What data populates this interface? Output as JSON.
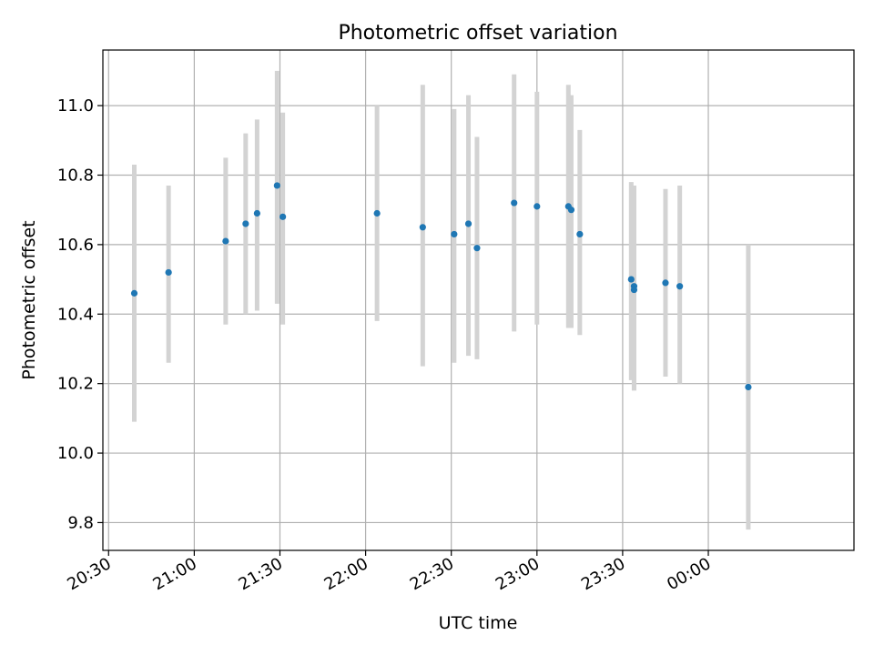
{
  "chart_data": {
    "type": "scatter",
    "title": "Photometric offset variation",
    "xlabel": "UTC time",
    "ylabel": "Photometric offset",
    "x_scale": "time",
    "xlim": [
      "20:28",
      "00:51"
    ],
    "ylim": [
      9.72,
      11.16
    ],
    "grid": true,
    "x_ticks": [
      {
        "label": "20:30",
        "t": "20:30"
      },
      {
        "label": "21:00",
        "t": "21:00"
      },
      {
        "label": "21:30",
        "t": "21:30"
      },
      {
        "label": "22:00",
        "t": "22:00"
      },
      {
        "label": "22:30",
        "t": "22:30"
      },
      {
        "label": "23:00",
        "t": "23:00"
      },
      {
        "label": "23:30",
        "t": "23:30"
      },
      {
        "label": "00:00",
        "t": "00:00"
      }
    ],
    "y_ticks": [
      {
        "label": "9.8",
        "v": 9.8
      },
      {
        "label": "10.0",
        "v": 10.0
      },
      {
        "label": "10.2",
        "v": 10.2
      },
      {
        "label": "10.4",
        "v": 10.4
      },
      {
        "label": "10.6",
        "v": 10.6
      },
      {
        "label": "10.8",
        "v": 10.8
      },
      {
        "label": "11.0",
        "v": 11.0
      }
    ],
    "colors": {
      "point": "#1f77b4",
      "errorbar": "#d3d3d3",
      "grid": "#b0b0b0",
      "axis": "#000000"
    },
    "points": [
      {
        "t": "20:39",
        "y": 10.46,
        "lo": 10.09,
        "hi": 10.83
      },
      {
        "t": "20:51",
        "y": 10.52,
        "lo": 10.26,
        "hi": 10.77
      },
      {
        "t": "21:11",
        "y": 10.61,
        "lo": 10.37,
        "hi": 10.85
      },
      {
        "t": "21:18",
        "y": 10.66,
        "lo": 10.4,
        "hi": 10.92
      },
      {
        "t": "21:22",
        "y": 10.69,
        "lo": 10.41,
        "hi": 10.96
      },
      {
        "t": "21:29",
        "y": 10.77,
        "lo": 10.43,
        "hi": 11.1
      },
      {
        "t": "21:31",
        "y": 10.68,
        "lo": 10.37,
        "hi": 10.98
      },
      {
        "t": "22:04",
        "y": 10.69,
        "lo": 10.38,
        "hi": 11.0
      },
      {
        "t": "22:20",
        "y": 10.65,
        "lo": 10.25,
        "hi": 11.06
      },
      {
        "t": "22:31",
        "y": 10.63,
        "lo": 10.26,
        "hi": 10.99
      },
      {
        "t": "22:36",
        "y": 10.66,
        "lo": 10.28,
        "hi": 11.03
      },
      {
        "t": "22:39",
        "y": 10.59,
        "lo": 10.27,
        "hi": 10.91
      },
      {
        "t": "22:52",
        "y": 10.72,
        "lo": 10.35,
        "hi": 11.09
      },
      {
        "t": "23:00",
        "y": 10.71,
        "lo": 10.37,
        "hi": 11.04
      },
      {
        "t": "23:11",
        "y": 10.71,
        "lo": 10.36,
        "hi": 11.06
      },
      {
        "t": "23:12",
        "y": 10.7,
        "lo": 10.36,
        "hi": 11.03
      },
      {
        "t": "23:15",
        "y": 10.63,
        "lo": 10.34,
        "hi": 10.93
      },
      {
        "t": "23:33",
        "y": 10.5,
        "lo": 10.21,
        "hi": 10.78
      },
      {
        "t": "23:34",
        "y": 10.48,
        "lo": 10.18,
        "hi": 10.77
      },
      {
        "t": "23:34",
        "y": 10.47,
        "lo": 10.18,
        "hi": 10.77
      },
      {
        "t": "23:45",
        "y": 10.49,
        "lo": 10.22,
        "hi": 10.76
      },
      {
        "t": "23:50",
        "y": 10.48,
        "lo": 10.2,
        "hi": 10.77
      },
      {
        "t": "00:14",
        "y": 10.19,
        "lo": 9.78,
        "hi": 10.6
      }
    ]
  }
}
